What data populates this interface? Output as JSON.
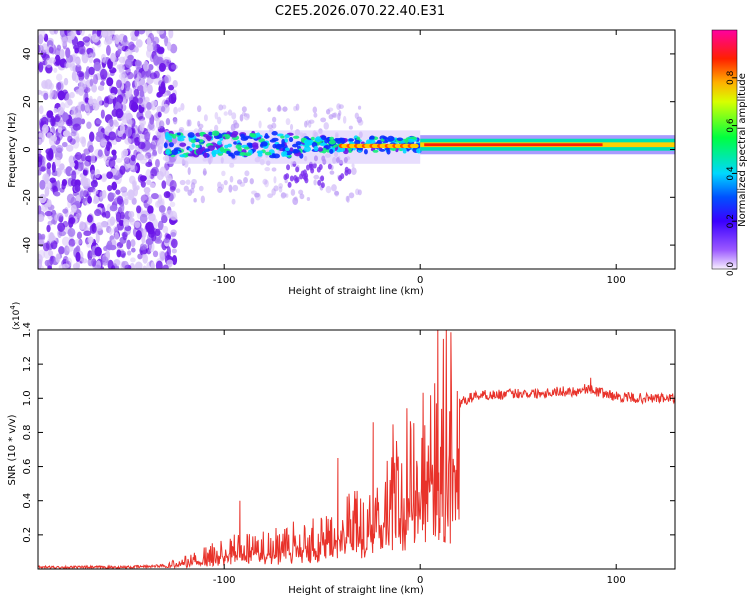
{
  "title": "C2E5.2026.070.22.40.E31",
  "chart_data": [
    {
      "type": "heatmap",
      "name": "spectrogram",
      "xlabel": "Height of straight line (km)",
      "ylabel": "Frequency (Hz)",
      "xlim": [
        -195,
        130
      ],
      "ylim": [
        -50,
        50
      ],
      "xticks": [
        -100,
        0,
        100
      ],
      "xtick_labels": [
        "-100",
        "0",
        "100"
      ],
      "yticks": [
        -40,
        -20,
        0,
        20,
        40
      ],
      "ytick_labels": [
        "-40",
        "-20",
        "0",
        "20",
        "40"
      ],
      "colorbar": {
        "label": "Normalized spectral amplitude",
        "range": [
          0,
          1
        ],
        "ticks": [
          0.0,
          0.2,
          0.4,
          0.6,
          0.8
        ],
        "tick_labels": [
          "0.0",
          "0.2",
          "0.4",
          "0.6",
          "0.8"
        ],
        "colors": [
          "#f8f0ff",
          "#6a00ff",
          "#0000ff",
          "#00e5ff",
          "#00ff40",
          "#ffff00",
          "#ff8000",
          "#ff0000",
          "#ff00a0"
        ]
      },
      "regions": [
        {
          "description": "diffuse noise",
          "x_range": [
            -195,
            -125
          ],
          "freq_range": [
            -50,
            50
          ],
          "amplitude": 0.05
        },
        {
          "description": "signal band",
          "x_range": [
            -130,
            0
          ],
          "center_freq": 2,
          "amplitude": 0.45
        },
        {
          "description": "strong signal",
          "x_range": [
            0,
            130
          ],
          "center_freq": 2,
          "amplitude": 0.95
        }
      ]
    },
    {
      "type": "line",
      "name": "snr",
      "xlabel": "Height of straight line (km)",
      "ylabel": "SNR (10 * v/v)",
      "scale_label": "(x10",
      "scale_exp": "4",
      "scale_close": ")",
      "xlim": [
        -195,
        130
      ],
      "ylim": [
        0,
        1.4
      ],
      "xticks": [
        -100,
        0,
        100
      ],
      "xtick_labels": [
        "-100",
        "0",
        "100"
      ],
      "yticks": [
        0.2,
        0.4,
        0.6,
        0.8,
        1.0,
        1.2,
        1.4
      ],
      "ytick_labels": [
        "0.2",
        "0.4",
        "0.6",
        "0.8",
        "1.0",
        "1.2",
        "1.4"
      ],
      "series": [
        {
          "name": "SNR",
          "color": "#e8322a",
          "x": [
            -195,
            -150,
            -130,
            -120,
            -110,
            -100,
            -90,
            -80,
            -70,
            -60,
            -50,
            -40,
            -35,
            -30,
            -25,
            -20,
            -15,
            -10,
            -5,
            0,
            5,
            10,
            15,
            20,
            25,
            30,
            40,
            50,
            60,
            70,
            80,
            85,
            90,
            100,
            110,
            120,
            130
          ],
          "y": [
            0.01,
            0.01,
            0.02,
            0.05,
            0.08,
            0.12,
            0.13,
            0.15,
            0.17,
            0.18,
            0.2,
            0.25,
            0.3,
            0.28,
            0.35,
            0.42,
            0.55,
            0.6,
            0.62,
            0.68,
            0.72,
            0.78,
            0.9,
            0.97,
            1.0,
            1.02,
            1.02,
            1.03,
            1.03,
            1.04,
            1.04,
            1.06,
            1.04,
            1.01,
            1.0,
            1.0,
            1.0
          ]
        }
      ],
      "spikes": [
        {
          "x": 9,
          "y": 1.45
        },
        {
          "x": 9.5,
          "y": 0.17
        },
        {
          "x": -24,
          "y": 0.86
        },
        {
          "x": -42,
          "y": 0.65
        },
        {
          "x": -92,
          "y": 0.4
        },
        {
          "x": 87,
          "y": 1.12
        }
      ]
    }
  ]
}
